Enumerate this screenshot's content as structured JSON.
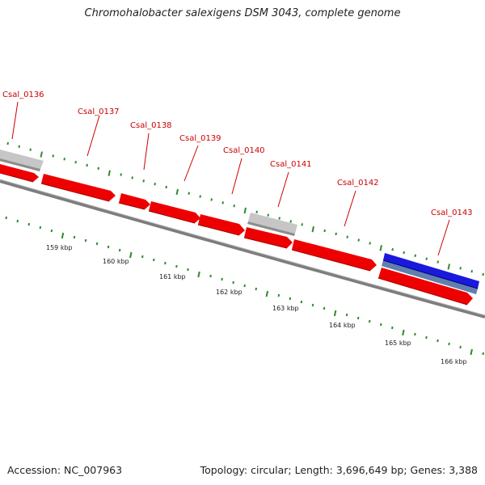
{
  "title": "Chromohalobacter salexigens DSM 3043, complete genome",
  "footer": {
    "accession": "Accession: NC_007963",
    "summary": "Topology: circular; Length: 3,696,649 bp; Genes: 3,388"
  },
  "colors": {
    "forward_gene": "#ee0000",
    "other_feature": "#c4c4c4",
    "highlight_gene": "#1a1adc",
    "highlight_shadow": "#5f7fb0",
    "backbone": "#7d7d7d",
    "tick": "#2e8b2e",
    "label": "#cc0000"
  },
  "gene_labels": [
    "Csal_0136",
    "Csal_0137",
    "Csal_0138",
    "Csal_0139",
    "Csal_0140",
    "Csal_0141",
    "Csal_0142",
    "Csal_0143"
  ],
  "kbp_labels": [
    "159 kbp",
    "160 kbp",
    "161 kbp",
    "162 kbp",
    "163 kbp",
    "164 kbp",
    "165 kbp",
    "166 kbp"
  ]
}
